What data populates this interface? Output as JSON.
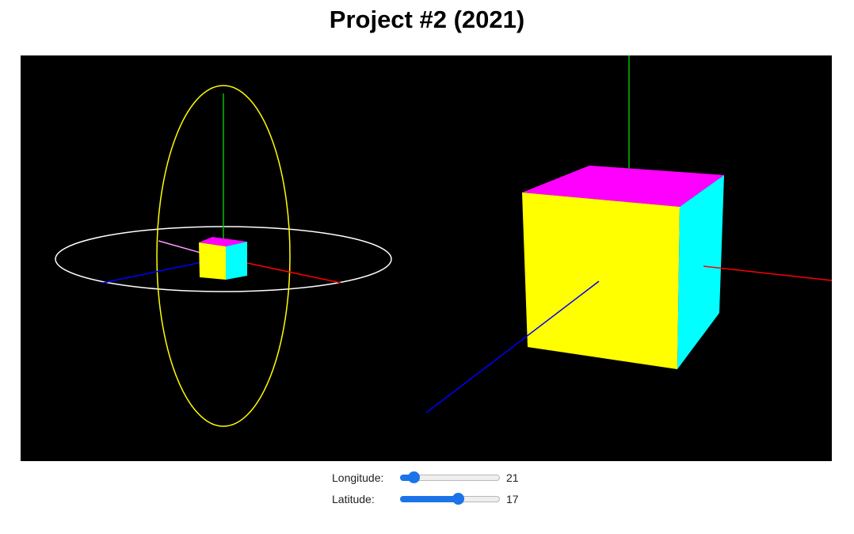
{
  "page": {
    "title": "Project #2 (2021)"
  },
  "scene": {
    "background_color": "#000000",
    "cube_colors": {
      "top": "#ff00ff",
      "front": "#ffff00",
      "side": "#00ffff"
    },
    "axis_colors": {
      "x": "#ff0000",
      "y": "#00c000",
      "z": "#0000ff"
    },
    "orbit_colors": {
      "longitude": "#ffff00",
      "latitude": "#ffffff"
    }
  },
  "controls": {
    "longitude": {
      "label": "Longitude:",
      "value": "21",
      "fraction": 0.09
    },
    "latitude": {
      "label": "Latitude:",
      "value": "17",
      "fraction": 0.6
    }
  }
}
